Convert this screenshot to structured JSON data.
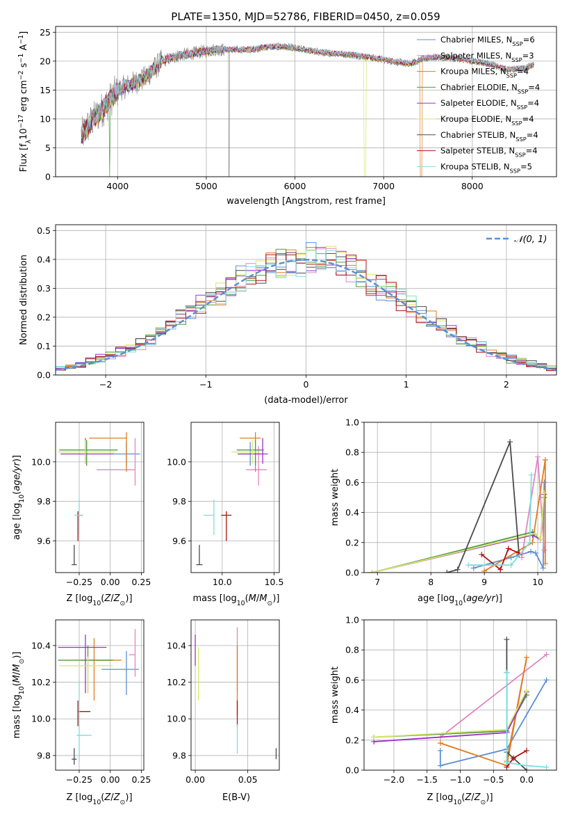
{
  "figure": {
    "title": "PLATE=1350, MJD=52786, FIBERID=0450, z=0.059"
  },
  "models": [
    {
      "name": "Chabrier MILES",
      "nssp": "6",
      "color": "#5b8ed6"
    },
    {
      "name": "Salpeter MILES",
      "nssp": "3",
      "color": "#e086c2"
    },
    {
      "name": "Kroupa MILES",
      "nssp": "4",
      "color": "#e07b1f"
    },
    {
      "name": "Chabrier ELODIE",
      "nssp": "4",
      "color": "#4c9a3a"
    },
    {
      "name": "Salpeter ELODIE",
      "nssp": "4",
      "color": "#9b30c8"
    },
    {
      "name": "Kroupa ELODIE",
      "nssp": "4",
      "color": "#d7e66a"
    },
    {
      "name": "Chabrier STELIB",
      "nssp": "4",
      "color": "#4a4a4a"
    },
    {
      "name": "Salpeter STELIB",
      "nssp": "4",
      "color": "#b01010"
    },
    {
      "name": "Kroupa STELIB",
      "nssp": "5",
      "color": "#7fdcdc"
    }
  ],
  "chart_data": [
    {
      "id": "spectrum",
      "type": "line",
      "xlabel": "wavelength [Angstrom, rest frame]",
      "ylabel": "Flux [f_λ 10^-17 erg cm^-2 s^-1 A^-1]",
      "xlim": [
        3300,
        8950
      ],
      "ylim": [
        0,
        26
      ],
      "xticks": [
        4000,
        5000,
        6000,
        7000,
        8000
      ],
      "yticks": [
        0,
        5,
        10,
        15,
        20,
        25
      ],
      "legend": "top-right",
      "continuum": {
        "x": [
          3590,
          3700,
          3850,
          4000,
          4150,
          4300,
          4500,
          4700,
          4900,
          5100,
          5300,
          5500,
          5700,
          5900,
          6100,
          6300,
          6500,
          6700,
          6900,
          7100,
          7300,
          7450,
          7600,
          7800,
          8000,
          8200,
          8400,
          8600,
          8700
        ],
        "y": [
          7,
          9.5,
          12,
          15,
          16,
          17,
          20,
          21,
          21.5,
          22,
          22,
          22,
          22.5,
          22.5,
          22,
          21.5,
          21.3,
          21,
          20.5,
          20,
          19.5,
          20.5,
          20.7,
          20.5,
          20,
          19.5,
          18.5,
          18.8,
          19.5
        ]
      }
    },
    {
      "id": "residuals",
      "type": "line",
      "xlabel": "(data-model)/error",
      "ylabel": "Normed distribution",
      "xlim": [
        -2.5,
        2.5
      ],
      "ylim": [
        0,
        0.52
      ],
      "xticks": [
        -2,
        -1,
        0,
        1,
        2
      ],
      "yticks": [
        0.0,
        0.1,
        0.2,
        0.3,
        0.4,
        0.5
      ],
      "legend": "top-right",
      "reference": {
        "label": "𝒩(0, 1)",
        "mean": 0,
        "sigma": 1,
        "color": "#5b8ed6"
      },
      "bins": {
        "start": -2.5,
        "width": 0.1,
        "count": 50
      }
    },
    {
      "id": "age-vs-z",
      "type": "scatter",
      "xlabel": "Z [log10(Z/Z⊙)]",
      "ylabel": "age [log10(age/yr)]",
      "xlim": [
        -0.44,
        0.27
      ],
      "ylim": [
        9.44,
        10.2
      ],
      "xticks": [
        -0.25,
        0.0,
        0.25
      ],
      "yticks": [
        9.6,
        9.8,
        10.0
      ],
      "points": [
        {
          "model": 0,
          "x": 0.13,
          "y": 10.04,
          "xerr": [
            0.1,
            0.11
          ],
          "yerr": [
            0.06,
            0.06
          ]
        },
        {
          "model": 1,
          "x": 0.2,
          "y": 9.96,
          "xerr": [
            0.31,
            0.0
          ],
          "yerr": [
            0.08,
            0.16
          ]
        },
        {
          "model": 2,
          "x": 0.13,
          "y": 10.12,
          "xerr": [
            0.3,
            0.0
          ],
          "yerr": [
            0.17,
            0.03
          ]
        },
        {
          "model": 3,
          "x": -0.19,
          "y": 10.06,
          "xerr": [
            0.22,
            0.25
          ],
          "yerr": [
            0.08,
            0.05
          ]
        },
        {
          "model": 4,
          "x": -0.2,
          "y": 10.04,
          "xerr": [
            0.2,
            0.23
          ],
          "yerr": [
            0.05,
            0.08
          ]
        },
        {
          "model": 5,
          "x": -0.2,
          "y": 10.05,
          "xerr": [
            0.22,
            0.24
          ],
          "yerr": [
            0.06,
            0.06
          ]
        },
        {
          "model": 6,
          "x": -0.29,
          "y": 9.48,
          "xerr": [
            0.02,
            0.02
          ],
          "yerr": [
            0.0,
            0.1
          ]
        },
        {
          "model": 7,
          "x": -0.26,
          "y": 9.73,
          "xerr": [
            0.0,
            0.04
          ],
          "yerr": [
            0.13,
            0.02
          ]
        },
        {
          "model": 8,
          "x": -0.25,
          "y": 9.73,
          "xerr": [
            0.04,
            0.03
          ],
          "yerr": [
            0.1,
            0.08
          ]
        }
      ]
    },
    {
      "id": "age-vs-mass",
      "type": "scatter",
      "xlabel": "mass [log10(M/M⊙)]",
      "ylabel": "",
      "xlim": [
        9.7,
        10.55
      ],
      "ylim": [
        9.44,
        10.2
      ],
      "xticks": [
        10.0,
        10.5
      ],
      "yticks": [
        9.6,
        9.8,
        10.0
      ],
      "points": [
        {
          "model": 0,
          "x": 10.27,
          "y": 10.04,
          "xerr": [
            0.12,
            0.1
          ],
          "yerr": [
            0.06,
            0.06
          ]
        },
        {
          "model": 1,
          "x": 10.35,
          "y": 9.96,
          "xerr": [
            0.12,
            0.08
          ],
          "yerr": [
            0.08,
            0.12
          ]
        },
        {
          "model": 2,
          "x": 10.32,
          "y": 10.12,
          "xerr": [
            0.15,
            0.05
          ],
          "yerr": [
            0.17,
            0.03
          ]
        },
        {
          "model": 3,
          "x": 10.32,
          "y": 10.06,
          "xerr": [
            0.18,
            0.08
          ],
          "yerr": [
            0.08,
            0.05
          ]
        },
        {
          "model": 4,
          "x": 10.39,
          "y": 10.04,
          "xerr": [
            0.24,
            0.05
          ],
          "yerr": [
            0.05,
            0.08
          ]
        },
        {
          "model": 5,
          "x": 10.29,
          "y": 10.05,
          "xerr": [
            0.2,
            0.07
          ],
          "yerr": [
            0.06,
            0.06
          ]
        },
        {
          "model": 6,
          "x": 9.78,
          "y": 9.48,
          "xerr": [
            0.03,
            0.03
          ],
          "yerr": [
            0.0,
            0.1
          ]
        },
        {
          "model": 7,
          "x": 10.04,
          "y": 9.73,
          "xerr": [
            0.05,
            0.05
          ],
          "yerr": [
            0.13,
            0.02
          ]
        },
        {
          "model": 8,
          "x": 9.92,
          "y": 9.73,
          "xerr": [
            0.1,
            0.0
          ],
          "yerr": [
            0.1,
            0.08
          ]
        }
      ]
    },
    {
      "id": "weight-vs-age",
      "type": "line",
      "xlabel": "age [log10(age/yr)]",
      "ylabel": "mass weight",
      "xlim": [
        6.75,
        10.35
      ],
      "ylim": [
        0,
        1
      ],
      "xticks": [
        7,
        8,
        9,
        10
      ],
      "yticks": [
        0.0,
        0.2,
        0.4,
        0.6,
        0.8,
        1.0
      ],
      "series": [
        {
          "model": 0,
          "x": [
            8.8,
            9.5,
            9.87,
            9.96,
            10.1,
            10.12
          ],
          "y": [
            0.03,
            0.1,
            0.14,
            0.13,
            0.03,
            0.6
          ]
        },
        {
          "model": 1,
          "x": [
            9.7,
            10.0,
            10.12
          ],
          "y": [
            0.1,
            0.77,
            0.15
          ]
        },
        {
          "model": 2,
          "x": [
            9.0,
            9.9,
            10.14,
            10.14
          ],
          "y": [
            0.01,
            0.2,
            0.75,
            0.06
          ]
        },
        {
          "model": 3,
          "x": [
            6.9,
            9.9,
            10.05,
            10.12
          ],
          "y": [
            0.0,
            0.27,
            0.22,
            0.5
          ]
        },
        {
          "model": 4,
          "x": [
            6.9,
            9.9,
            10.05,
            10.12
          ],
          "y": [
            0.0,
            0.25,
            0.22,
            0.52
          ]
        },
        {
          "model": 5,
          "x": [
            6.9,
            9.95,
            10.05,
            10.12
          ],
          "y": [
            0.0,
            0.26,
            0.22,
            0.53
          ]
        },
        {
          "model": 6,
          "x": [
            8.3,
            8.5,
            9.48,
            9.65
          ],
          "y": [
            0.0,
            0.02,
            0.87,
            0.12
          ]
        },
        {
          "model": 7,
          "x": [
            8.95,
            9.3,
            9.45,
            9.65
          ],
          "y": [
            0.12,
            0.02,
            0.16,
            0.13
          ]
        },
        {
          "model": 8,
          "x": [
            8.7,
            9.5,
            9.85,
            9.88
          ],
          "y": [
            0.05,
            0.05,
            0.2,
            0.65
          ]
        }
      ]
    },
    {
      "id": "mass-vs-z",
      "type": "scatter",
      "xlabel": "Z [log10(Z/Z⊙)]",
      "ylabel": "mass [log10(M/M⊙)]",
      "xlim": [
        -0.44,
        0.27
      ],
      "ylim": [
        9.72,
        10.54
      ],
      "xticks": [
        -0.25,
        0.0,
        0.25
      ],
      "yticks": [
        9.8,
        10.0,
        10.2,
        10.4
      ],
      "points": [
        {
          "model": 0,
          "x": 0.13,
          "y": 10.27,
          "xerr": [
            0.2,
            0.1
          ],
          "yerr": [
            0.14,
            0.1
          ]
        },
        {
          "model": 1,
          "x": 0.2,
          "y": 10.35,
          "xerr": [
            0.05,
            0.0
          ],
          "yerr": [
            0.12,
            0.14
          ]
        },
        {
          "model": 2,
          "x": -0.13,
          "y": 10.32,
          "xerr": [
            0.1,
            0.22
          ],
          "yerr": [
            0.22,
            0.12
          ]
        },
        {
          "model": 3,
          "x": -0.18,
          "y": 10.32,
          "xerr": [
            0.24,
            0.2
          ],
          "yerr": [
            0.18,
            0.08
          ]
        },
        {
          "model": 4,
          "x": -0.2,
          "y": 10.39,
          "xerr": [
            0.22,
            0.17
          ],
          "yerr": [
            0.25,
            0.07
          ]
        },
        {
          "model": 5,
          "x": -0.18,
          "y": 10.29,
          "xerr": [
            0.23,
            0.2
          ],
          "yerr": [
            0.15,
            0.05
          ]
        },
        {
          "model": 6,
          "x": -0.29,
          "y": 9.78,
          "xerr": [
            0.02,
            0.02
          ],
          "yerr": [
            0.03,
            0.06
          ]
        },
        {
          "model": 7,
          "x": -0.26,
          "y": 10.04,
          "xerr": [
            0.0,
            0.1
          ],
          "yerr": [
            0.08,
            0.06
          ]
        },
        {
          "model": 8,
          "x": -0.25,
          "y": 9.91,
          "xerr": [
            0.02,
            0.1
          ],
          "yerr": [
            0.14,
            0.3
          ]
        }
      ]
    },
    {
      "id": "mass-vs-ebv",
      "type": "scatter",
      "xlabel": "E(B-V)",
      "ylabel": "",
      "xlim": [
        -0.004,
        0.08
      ],
      "ylim": [
        9.72,
        10.54
      ],
      "xticks": [
        0.0,
        0.05
      ],
      "yticks": [
        9.8,
        10.0,
        10.2,
        10.4
      ],
      "points": [
        {
          "model": 1,
          "x": 0.04,
          "y": 10.35,
          "xerr": [
            0,
            0
          ],
          "yerr": [
            0.2,
            0.15
          ]
        },
        {
          "model": 2,
          "x": 0.04,
          "y": 10.32,
          "xerr": [
            0,
            0
          ],
          "yerr": [
            0.3,
            0.08
          ]
        },
        {
          "model": 4,
          "x": 0.0,
          "y": 10.39,
          "xerr": [
            0,
            0
          ],
          "yerr": [
            0.1,
            0.07
          ]
        },
        {
          "model": 5,
          "x": 0.003,
          "y": 10.29,
          "xerr": [
            0,
            0
          ],
          "yerr": [
            0.19,
            0.1
          ]
        },
        {
          "model": 6,
          "x": 0.077,
          "y": 9.78,
          "xerr": [
            0,
            0
          ],
          "yerr": [
            0.0,
            0.06
          ]
        },
        {
          "model": 7,
          "x": 0.04,
          "y": 10.04,
          "xerr": [
            0,
            0
          ],
          "yerr": [
            0.08,
            0.06
          ]
        },
        {
          "model": 8,
          "x": 0.04,
          "y": 9.91,
          "xerr": [
            0,
            0
          ],
          "yerr": [
            0.1,
            0.06
          ]
        }
      ]
    },
    {
      "id": "weight-vs-z",
      "type": "line",
      "xlabel": "Z [log10(Z/Z⊙)]",
      "ylabel": "mass weight",
      "xlim": [
        -2.45,
        0.45
      ],
      "ylim": [
        0,
        1
      ],
      "xticks": [
        -2.0,
        -1.5,
        -1.0,
        -0.5,
        0.0
      ],
      "yticks": [
        0.0,
        0.2,
        0.4,
        0.6,
        0.8,
        1.0
      ],
      "series": [
        {
          "model": 0,
          "x": [
            -1.3,
            -1.3,
            -0.3,
            0.3
          ],
          "y": [
            0.13,
            0.03,
            0.14,
            0.6
          ]
        },
        {
          "model": 1,
          "x": [
            -2.3,
            -1.3,
            0.3
          ],
          "y": [
            0.19,
            0.22,
            0.77
          ]
        },
        {
          "model": 2,
          "x": [
            -1.3,
            -0.3,
            0.0,
            -0.3
          ],
          "y": [
            0.18,
            0.03,
            0.75,
            0.06
          ]
        },
        {
          "model": 3,
          "x": [
            -2.3,
            -0.3,
            0.0
          ],
          "y": [
            0.22,
            0.26,
            0.5
          ]
        },
        {
          "model": 4,
          "x": [
            -2.3,
            -0.3,
            0.0
          ],
          "y": [
            0.19,
            0.25,
            0.52
          ]
        },
        {
          "model": 5,
          "x": [
            -2.3,
            -0.3,
            0.0
          ],
          "y": [
            0.22,
            0.27,
            0.53
          ]
        },
        {
          "model": 6,
          "x": [
            -0.3,
            -0.3,
            -0.3,
            0.0
          ],
          "y": [
            0.87,
            0.65,
            0.12,
            0.0
          ]
        },
        {
          "model": 7,
          "x": [
            -0.3,
            -0.2,
            0.0
          ],
          "y": [
            0.02,
            0.08,
            0.13
          ]
        },
        {
          "model": 8,
          "x": [
            -0.3,
            -0.3,
            0.0,
            0.3
          ],
          "y": [
            0.65,
            0.05,
            0.03,
            0.02
          ]
        }
      ]
    }
  ]
}
